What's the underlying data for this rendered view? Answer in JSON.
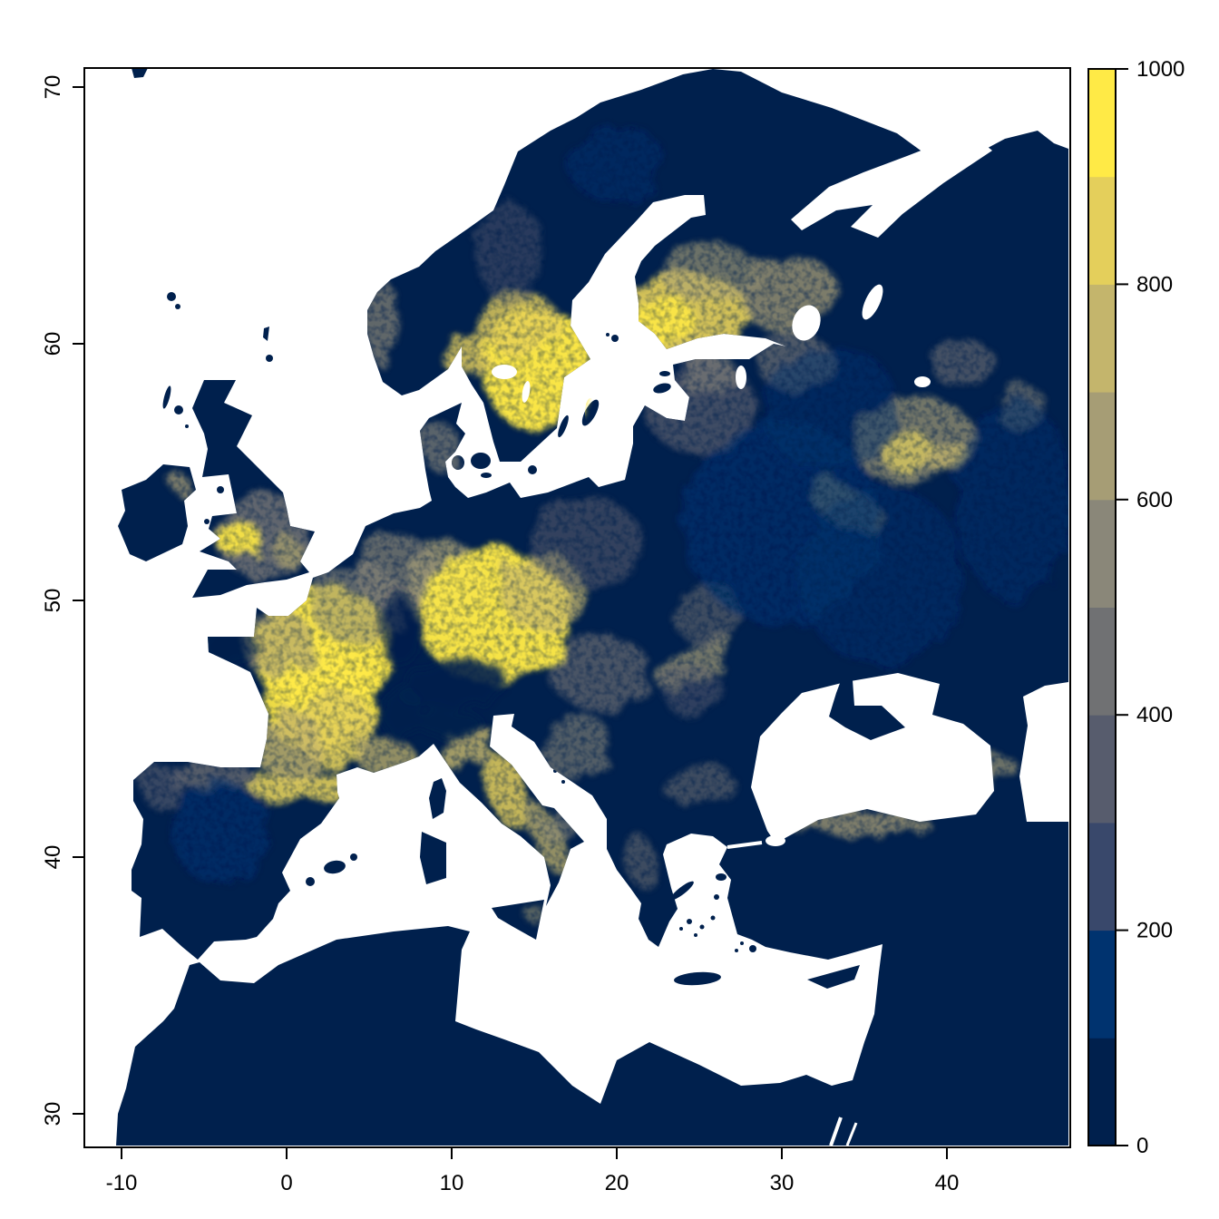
{
  "figure": {
    "background": "#ffffff",
    "frame_color": "#000000"
  },
  "x_axis": {
    "ticks": [
      -10,
      0,
      10,
      20,
      30,
      40
    ],
    "labels": [
      "-10",
      "0",
      "10",
      "20",
      "30",
      "40"
    ]
  },
  "y_axis": {
    "ticks": [
      30,
      40,
      50,
      60,
      70
    ],
    "labels": [
      "30",
      "40",
      "50",
      "60",
      "70"
    ]
  },
  "legend": {
    "min": 0,
    "max": 1000,
    "tick_values": [
      0,
      200,
      400,
      600,
      800,
      1000
    ],
    "tick_labels": [
      "0",
      "200",
      "400",
      "600",
      "800",
      "1000"
    ],
    "class_breaks": [
      0,
      100,
      200,
      300,
      400,
      500,
      600,
      700,
      800,
      900,
      1000
    ],
    "colors": [
      "#00204D",
      "#00336F",
      "#39486B",
      "#575C6D",
      "#707173",
      "#8A8779",
      "#A69D75",
      "#C4B56C",
      "#E4CF5B",
      "#FFEA46"
    ]
  },
  "chart_data": {
    "type": "heatmap",
    "subtype": "geographic-raster",
    "projection": "longitude-latitude degrees",
    "x_range": [
      -12.3,
      47.5
    ],
    "y_range": [
      28.7,
      70.9
    ],
    "value_range": [
      0,
      1000
    ],
    "palette": "cividis, 10 discrete classes of 100",
    "sea_color": "#ffffff",
    "land_base_color": "#00204D",
    "high_value_regions": [
      {
        "n": "northern-france-core",
        "lon": 2.3,
        "lat": 48.0,
        "rx": 4.2,
        "ry": 2.6,
        "v": 950,
        "o": 0.95
      },
      {
        "n": "central-france",
        "lon": 2.0,
        "lat": 46.2,
        "rx": 3.4,
        "ry": 2.2,
        "v": 900,
        "o": 0.85
      },
      {
        "n": "massif-central",
        "lon": 3.0,
        "lat": 45.0,
        "rx": 2.2,
        "ry": 1.6,
        "v": 850,
        "o": 0.8
      },
      {
        "n": "aquitaine",
        "lon": 0.3,
        "lat": 44.3,
        "rx": 2.0,
        "ry": 1.4,
        "v": 750,
        "o": 0.7
      },
      {
        "n": "normandy",
        "lon": -0.5,
        "lat": 48.3,
        "rx": 2.2,
        "ry": 1.3,
        "v": 650,
        "o": 0.6
      },
      {
        "n": "northeast-france",
        "lon": 4.2,
        "lat": 49.9,
        "rx": 2.8,
        "ry": 1.6,
        "v": 550,
        "o": 0.5
      },
      {
        "n": "benelux-rhine",
        "lon": 6.5,
        "lat": 51.2,
        "rx": 2.5,
        "ry": 1.4,
        "v": 500,
        "o": 0.55
      },
      {
        "n": "central-germany",
        "lon": 9.5,
        "lat": 50.6,
        "rx": 2.5,
        "ry": 1.8,
        "v": 600,
        "o": 0.65
      },
      {
        "n": "bavaria-bohemia-core",
        "lon": 12.6,
        "lat": 49.4,
        "rx": 4.6,
        "ry": 2.6,
        "v": 950,
        "o": 0.92
      },
      {
        "n": "silesia",
        "lon": 15.5,
        "lat": 50.3,
        "rx": 2.5,
        "ry": 1.5,
        "v": 700,
        "o": 0.6
      },
      {
        "n": "pyrenees",
        "lon": 0.8,
        "lat": 42.7,
        "rx": 3.2,
        "ry": 0.55,
        "v": 800,
        "o": 0.8
      },
      {
        "n": "provence-riviera",
        "lon": 6.0,
        "lat": 43.9,
        "rx": 1.7,
        "ry": 0.8,
        "v": 700,
        "o": 0.6
      },
      {
        "n": "north-apennines",
        "lon": 11.0,
        "lat": 44.2,
        "rx": 1.8,
        "ry": 0.7,
        "v": 750,
        "o": 0.7,
        "rot": -35
      },
      {
        "n": "central-apennines",
        "lon": 13.3,
        "lat": 42.6,
        "rx": 1.2,
        "ry": 1.6,
        "v": 850,
        "o": 0.75,
        "rot": -20
      },
      {
        "n": "south-apennines",
        "lon": 15.8,
        "lat": 40.7,
        "rx": 0.9,
        "ry": 1.4,
        "v": 700,
        "o": 0.6,
        "rot": -25
      },
      {
        "n": "puglia",
        "lon": 16.5,
        "lat": 41.2,
        "rx": 1.2,
        "ry": 0.5,
        "v": 500,
        "o": 0.45,
        "rot": -20
      },
      {
        "n": "cantabrian-coast",
        "lon": -4.5,
        "lat": 43.1,
        "rx": 2.8,
        "ry": 0.5,
        "v": 450,
        "o": 0.6
      },
      {
        "n": "northwest-iberia",
        "lon": -7.5,
        "lat": 42.8,
        "rx": 1.4,
        "ry": 0.9,
        "v": 300,
        "o": 0.5
      },
      {
        "n": "iberia-interior",
        "lon": -4.0,
        "lat": 41.0,
        "rx": 3.0,
        "ry": 2.0,
        "v": 120,
        "o": 0.5
      },
      {
        "n": "england-haze",
        "lon": -1.4,
        "lat": 52.5,
        "rx": 2.8,
        "ry": 1.6,
        "v": 450,
        "o": 0.75
      },
      {
        "n": "wales-midlands-core",
        "lon": -2.9,
        "lat": 52.4,
        "rx": 1.2,
        "ry": 0.8,
        "v": 950,
        "o": 0.9
      },
      {
        "n": "southeast-england",
        "lon": 0.0,
        "lat": 51.9,
        "rx": 0.9,
        "ry": 0.5,
        "v": 700,
        "o": 0.5
      },
      {
        "n": "northeast-ireland",
        "lon": -6.4,
        "lat": 54.5,
        "rx": 0.5,
        "ry": 0.35,
        "v": 650,
        "o": 0.6
      },
      {
        "n": "south-sweden-core",
        "lon": 15.3,
        "lat": 59.0,
        "rx": 3.4,
        "ry": 2.4,
        "v": 950,
        "o": 0.95
      },
      {
        "n": "mid-sweden",
        "lon": 14.0,
        "lat": 60.8,
        "rx": 2.5,
        "ry": 1.2,
        "v": 800,
        "o": 0.7
      },
      {
        "n": "oslo-region",
        "lon": 10.8,
        "lat": 59.6,
        "rx": 1.5,
        "ry": 0.8,
        "v": 850,
        "o": 0.7
      },
      {
        "n": "southwest-norway-coast",
        "lon": 5.8,
        "lat": 60.8,
        "rx": 0.9,
        "ry": 1.7,
        "v": 550,
        "o": 0.55
      },
      {
        "n": "scandes-speckle",
        "lon": 13.5,
        "lat": 63.5,
        "rx": 2.0,
        "ry": 2.0,
        "v": 350,
        "o": 0.35
      },
      {
        "n": "south-finland",
        "lon": 24.0,
        "lat": 61.2,
        "rx": 4.0,
        "ry": 1.6,
        "v": 880,
        "o": 0.85
      },
      {
        "n": "southwest-finland-core",
        "lon": 22.8,
        "lat": 60.9,
        "rx": 1.8,
        "ry": 1.0,
        "v": 970,
        "o": 0.85
      },
      {
        "n": "karelia",
        "lon": 30.5,
        "lat": 61.9,
        "rx": 3.0,
        "ry": 1.5,
        "v": 650,
        "o": 0.6
      },
      {
        "n": "central-finland",
        "lon": 25.5,
        "lat": 62.8,
        "rx": 2.8,
        "ry": 1.2,
        "v": 600,
        "o": 0.5
      },
      {
        "n": "baltic-states",
        "lon": 25.0,
        "lat": 57.6,
        "rx": 3.3,
        "ry": 1.9,
        "v": 350,
        "o": 0.6
      },
      {
        "n": "estonia",
        "lon": 25.5,
        "lat": 58.8,
        "rx": 1.8,
        "ry": 0.8,
        "v": 550,
        "o": 0.5
      },
      {
        "n": "petersburg-region",
        "lon": 30.8,
        "lat": 59.3,
        "rx": 2.2,
        "ry": 1.2,
        "v": 400,
        "o": 0.55
      },
      {
        "n": "moscow-core",
        "lon": 37.6,
        "lat": 55.8,
        "rx": 1.6,
        "ry": 0.8,
        "v": 900,
        "o": 0.85
      },
      {
        "n": "moscow-east",
        "lon": 40.0,
        "lat": 55.6,
        "rx": 1.4,
        "ry": 0.7,
        "v": 820,
        "o": 0.7
      },
      {
        "n": "moscow-halo",
        "lon": 38.0,
        "lat": 56.2,
        "rx": 3.8,
        "ry": 1.7,
        "v": 600,
        "o": 0.55
      },
      {
        "n": "bryansk-streak",
        "lon": 34.0,
        "lat": 53.6,
        "rx": 2.6,
        "ry": 0.8,
        "v": 600,
        "o": 0.5,
        "rot": 30
      },
      {
        "n": "vologda",
        "lon": 41.0,
        "lat": 59.2,
        "rx": 2.0,
        "ry": 0.9,
        "v": 450,
        "o": 0.45
      },
      {
        "n": "volga",
        "lon": 44.5,
        "lat": 57.5,
        "rx": 1.6,
        "ry": 0.9,
        "v": 500,
        "o": 0.4
      },
      {
        "n": "carpathians",
        "lon": 24.8,
        "lat": 47.6,
        "rx": 2.6,
        "ry": 0.8,
        "v": 650,
        "o": 0.55,
        "rot": -35
      },
      {
        "n": "pannonia",
        "lon": 19.0,
        "lat": 47.2,
        "rx": 3.0,
        "ry": 1.5,
        "v": 450,
        "o": 0.5
      },
      {
        "n": "transylvania",
        "lon": 24.5,
        "lat": 46.5,
        "rx": 1.8,
        "ry": 1.0,
        "v": 350,
        "o": 0.4
      },
      {
        "n": "dinaric-alps",
        "lon": 17.5,
        "lat": 44.3,
        "rx": 2.2,
        "ry": 1.1,
        "v": 550,
        "o": 0.45,
        "rot": -30
      },
      {
        "n": "pindus",
        "lon": 21.5,
        "lat": 39.8,
        "rx": 1.0,
        "ry": 1.2,
        "v": 450,
        "o": 0.4,
        "rot": -20
      },
      {
        "n": "balkan-mountains",
        "lon": 25.0,
        "lat": 42.8,
        "rx": 2.2,
        "ry": 0.6,
        "v": 400,
        "o": 0.4,
        "rot": -10
      },
      {
        "n": "pontic-coast",
        "lon": 34.5,
        "lat": 41.3,
        "rx": 4.5,
        "ry": 0.45,
        "v": 650,
        "o": 0.6
      },
      {
        "n": "caucasus",
        "lon": 41.5,
        "lat": 43.3,
        "rx": 2.6,
        "ry": 0.7,
        "v": 600,
        "o": 0.5,
        "rot": -15
      },
      {
        "n": "poland",
        "lon": 18.0,
        "lat": 52.3,
        "rx": 3.5,
        "ry": 1.7,
        "v": 350,
        "o": 0.45
      },
      {
        "n": "denmark",
        "lon": 9.3,
        "lat": 56.0,
        "rx": 1.2,
        "ry": 0.9,
        "v": 500,
        "o": 0.5
      },
      {
        "n": "west-ukraine",
        "lon": 25.5,
        "lat": 49.5,
        "rx": 2.2,
        "ry": 1.2,
        "v": 400,
        "o": 0.4
      },
      {
        "n": "belarus-noise",
        "lon": 30.0,
        "lat": 53.0,
        "rx": 6.0,
        "ry": 4.0,
        "v": 150,
        "o": 0.5
      },
      {
        "n": "russia-noise-south",
        "lon": 36.0,
        "lat": 51.0,
        "rx": 5.0,
        "ry": 3.5,
        "v": 150,
        "o": 0.4
      },
      {
        "n": "russia-noise-east",
        "lon": 44.0,
        "lat": 54.0,
        "rx": 3.5,
        "ry": 4.0,
        "v": 150,
        "o": 0.4
      },
      {
        "n": "russia-noise-north",
        "lon": 33.0,
        "lat": 57.5,
        "rx": 4.0,
        "ry": 2.5,
        "v": 150,
        "o": 0.4
      },
      {
        "n": "lapland-noise",
        "lon": 20.0,
        "lat": 67.0,
        "rx": 3.0,
        "ry": 1.5,
        "v": 150,
        "o": 0.4
      },
      {
        "n": "sicily-speck",
        "lon": 14.9,
        "lat": 37.9,
        "rx": 0.7,
        "ry": 0.3,
        "v": 600,
        "o": 0.4
      }
    ],
    "low_value_patches": [
      {
        "n": "alps",
        "lon": 10.0,
        "lat": 46.7,
        "rx": 3.3,
        "ry": 0.9,
        "o": 0.9,
        "rot": -10
      },
      {
        "n": "western-alps",
        "lon": 7.0,
        "lat": 45.6,
        "rx": 1.2,
        "ry": 1.1,
        "o": 0.85
      },
      {
        "n": "po-valley",
        "lon": 9.8,
        "lat": 45.2,
        "rx": 2.0,
        "ry": 0.55,
        "o": 0.8
      },
      {
        "n": "lorraine-gap",
        "lon": 6.8,
        "lat": 48.9,
        "rx": 1.2,
        "ry": 1.5,
        "o": 0.7
      },
      {
        "n": "brittany",
        "lon": -3.5,
        "lat": 48.2,
        "rx": 1.6,
        "ry": 0.8,
        "o": 0.6
      }
    ]
  }
}
